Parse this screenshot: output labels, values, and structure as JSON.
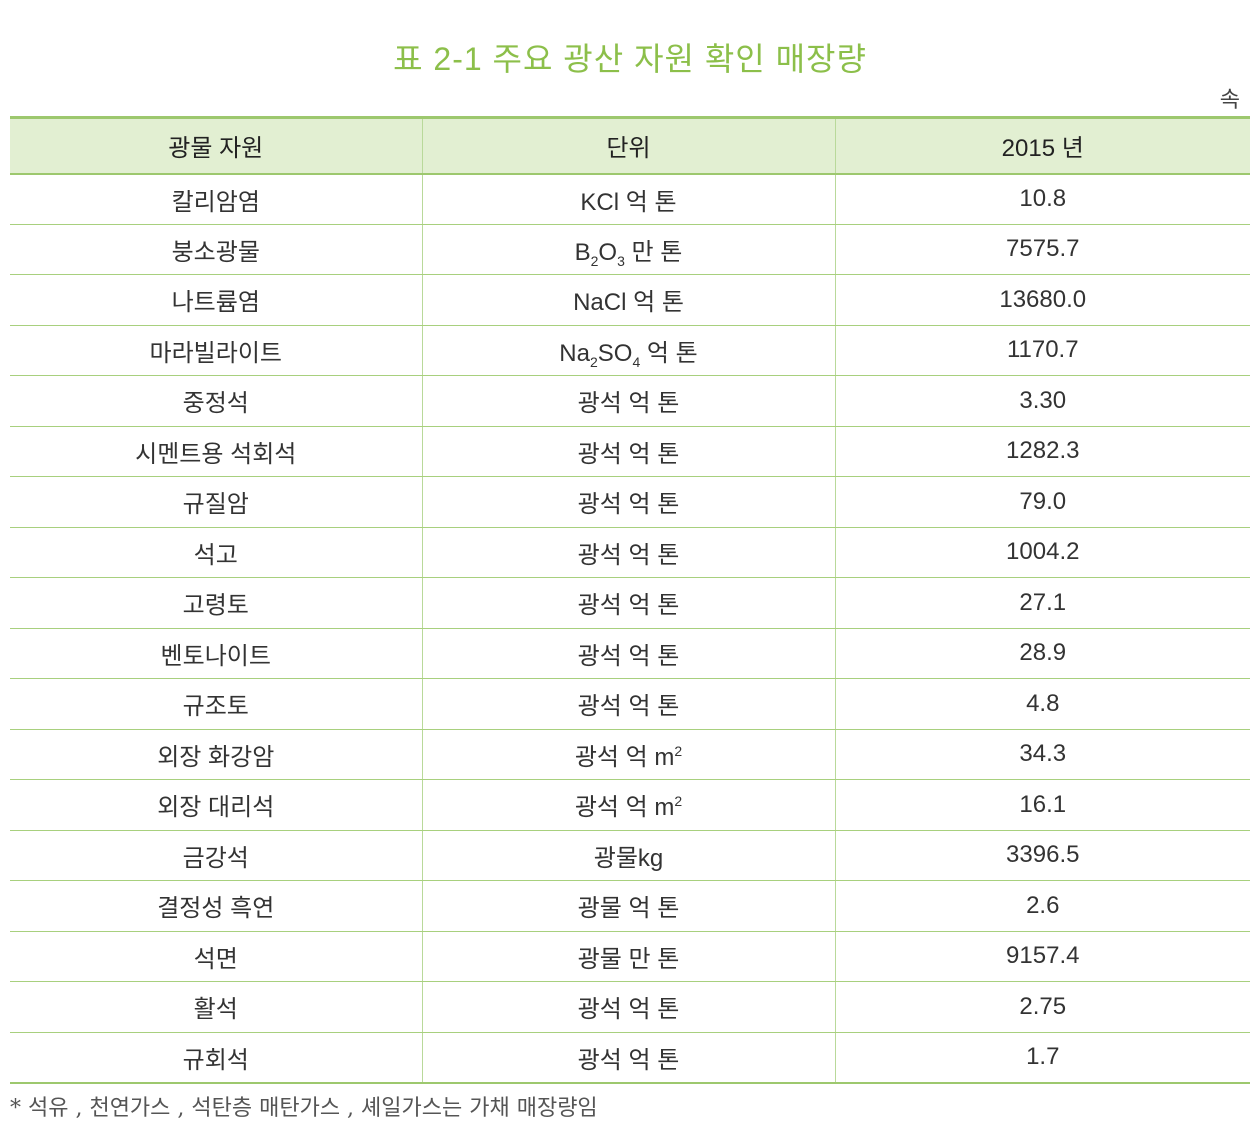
{
  "title": "표 2-1 주요 광산 자원 확인 매장량",
  "continued": "속",
  "headers": [
    "광물 자원",
    "단위",
    "2015 년"
  ],
  "rows": [
    {
      "name": "칼리암염",
      "unit": [
        "KCl 억 톤"
      ],
      "value": "10.8"
    },
    {
      "name": "붕소광물",
      "unit": [
        "B",
        "2",
        "O",
        "3",
        " 만 톤"
      ],
      "value": "7575.7"
    },
    {
      "name": "나트륨염",
      "unit": [
        "NaCl 억 톤"
      ],
      "value": "13680.0"
    },
    {
      "name": "마라빌라이트",
      "unit": [
        "Na",
        "2",
        "SO",
        "4",
        " 억 톤"
      ],
      "value": "1170.7"
    },
    {
      "name": "중정석",
      "unit": [
        "광석 억 톤"
      ],
      "value": "3.30"
    },
    {
      "name": "시멘트용 석회석",
      "unit": [
        "광석 억 톤"
      ],
      "value": "1282.3"
    },
    {
      "name": "규질암",
      "unit": [
        "광석 억 톤"
      ],
      "value": "79.0"
    },
    {
      "name": "석고",
      "unit": [
        "광석 억 톤"
      ],
      "value": "1004.2"
    },
    {
      "name": "고령토",
      "unit": [
        "광석 억 톤"
      ],
      "value": "27.1"
    },
    {
      "name": "벤토나이트",
      "unit": [
        "광석 억 톤"
      ],
      "value": "28.9"
    },
    {
      "name": "규조토",
      "unit": [
        "광석 억 톤"
      ],
      "value": "4.8"
    },
    {
      "name": "외장 화강암",
      "unit": [
        "광석 억 m",
        "2"
      ],
      "value": "34.3"
    },
    {
      "name": "외장 대리석",
      "unit": [
        "광석 억 m",
        "2"
      ],
      "value": "16.1"
    },
    {
      "name": "금강석",
      "unit": [
        "광물kg"
      ],
      "value": "3396.5"
    },
    {
      "name": "결정성 흑연",
      "unit": [
        "광물 억 톤"
      ],
      "value": "2.6"
    },
    {
      "name": "석면",
      "unit": [
        "광물 만 톤"
      ],
      "value": "9157.4"
    },
    {
      "name": "활석",
      "unit": [
        "광석 억 톤"
      ],
      "value": "2.75"
    },
    {
      "name": "규회석",
      "unit": [
        "광석 억 톤"
      ],
      "value": "1.7"
    }
  ],
  "footnote": "* 석유 , 천연가스 , 석탄층 매탄가스 , 셰일가스는 가채 매장량임",
  "colors": {
    "title": "#8cbf4a",
    "header_bg": "#e2efd2",
    "rule": "#9dc86e"
  }
}
